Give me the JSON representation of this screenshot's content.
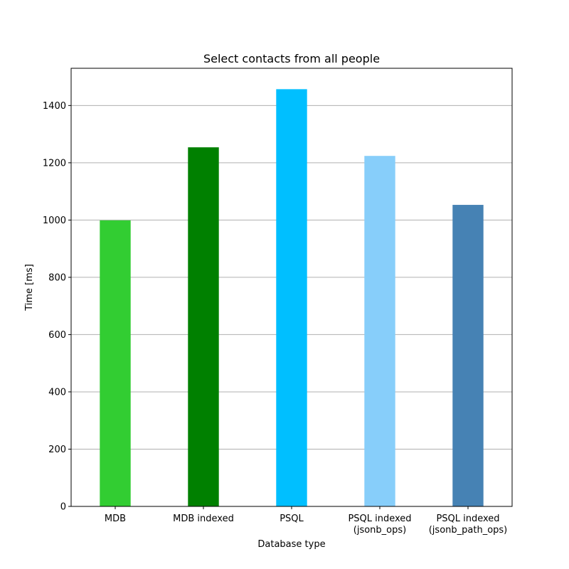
{
  "chart_data": {
    "type": "bar",
    "title": "Select contacts from all people",
    "xlabel": "Database type",
    "ylabel": "Time [ms]",
    "categories": [
      [
        "MDB"
      ],
      [
        "MDB indexed"
      ],
      [
        "PSQL"
      ],
      [
        "PSQL indexed",
        "(jsonb_ops)"
      ],
      [
        "PSQL indexed",
        "(jsonb_path_ops)"
      ]
    ],
    "values": [
      999,
      1254,
      1457,
      1224,
      1053
    ],
    "colors": [
      "#32cd32",
      "#008000",
      "#00bfff",
      "#87cefa",
      "#4682b4"
    ],
    "ylim": [
      0,
      1530
    ],
    "yticks": [
      0,
      200,
      400,
      600,
      800,
      1000,
      1200,
      1400
    ],
    "grid": "y",
    "legend": "none"
  }
}
